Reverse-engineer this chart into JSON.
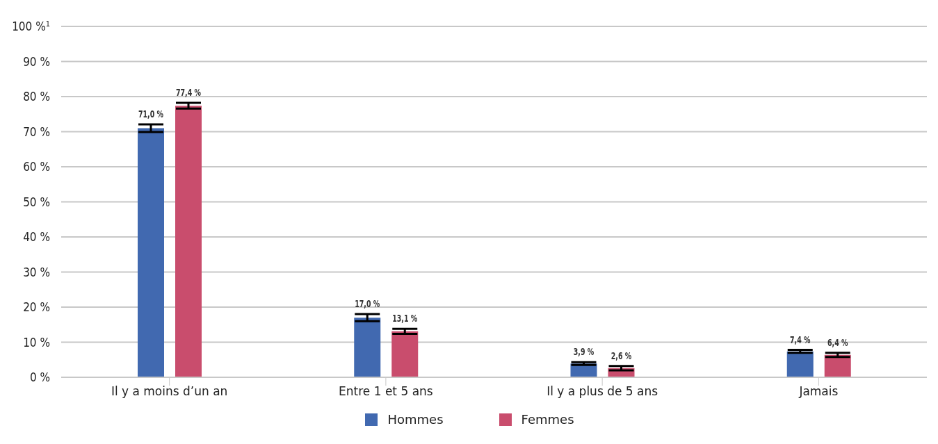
{
  "chart_data": {
    "type": "bar",
    "categories": [
      "Il y a moins d’un an",
      "Entre 1 et 5 ans",
      "Il y a plus de 5 ans",
      "Jamais"
    ],
    "series": [
      {
        "name": "Hommes",
        "color": "#4169b0",
        "values": [
          71.0,
          17.0,
          3.9,
          7.4
        ],
        "errors": [
          1.1,
          1.0,
          0.4,
          0.4
        ],
        "value_labels": [
          "71,0 %",
          "17,0 %",
          "3,9 %",
          "7,4 %"
        ]
      },
      {
        "name": "Femmes",
        "color": "#c94d6d",
        "values": [
          77.4,
          13.1,
          2.6,
          6.4
        ],
        "errors": [
          0.8,
          0.7,
          0.6,
          0.6
        ],
        "value_labels": [
          "77,4 %",
          "13,1 %",
          "2,6 %",
          "6,4 %"
        ]
      }
    ],
    "ylim": [
      0,
      100
    ],
    "yticks": [
      {
        "value": 0,
        "label": "0 %"
      },
      {
        "value": 10,
        "label": "10 %"
      },
      {
        "value": 20,
        "label": "20 %"
      },
      {
        "value": 30,
        "label": "30 %"
      },
      {
        "value": 40,
        "label": "40 %"
      },
      {
        "value": 50,
        "label": "50 %"
      },
      {
        "value": 60,
        "label": "60 %"
      },
      {
        "value": 70,
        "label": "70 %"
      },
      {
        "value": 80,
        "label": "80 %"
      },
      {
        "value": 90,
        "label": "90 %"
      },
      {
        "value": 100,
        "label": "100 %$^{1}$"
      }
    ],
    "grid": "y",
    "legend": "bottom"
  }
}
